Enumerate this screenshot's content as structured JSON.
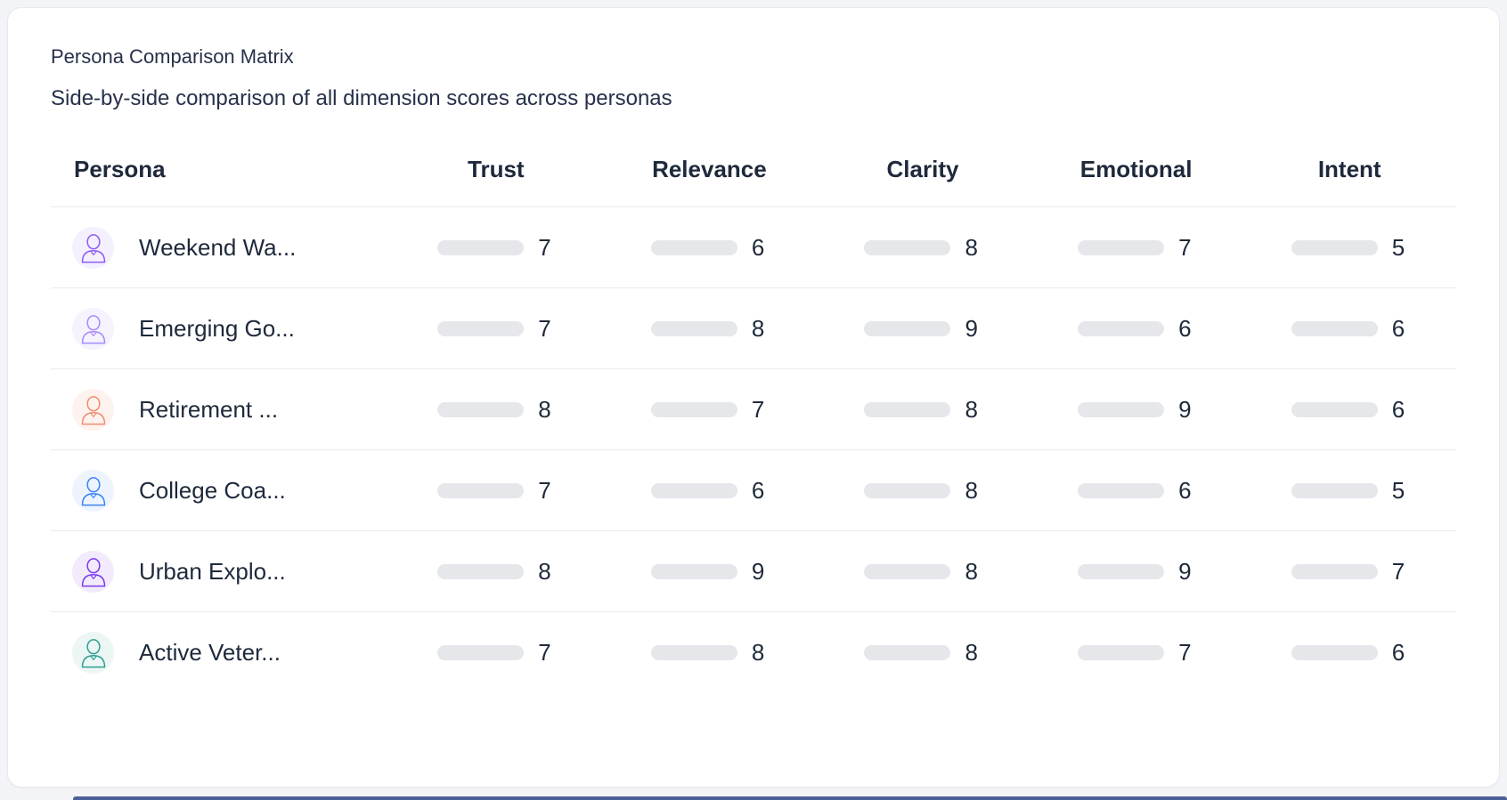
{
  "header": {
    "title": "Persona Comparison Matrix",
    "subtitle": "Side-by-side comparison of all dimension scores across personas"
  },
  "table": {
    "columns": [
      "Persona",
      "Trust",
      "Relevance",
      "Clarity",
      "Emotional",
      "Intent"
    ],
    "score_scale_max": 10,
    "score_colors": {
      "high": "#22c55e",
      "mid": "#eab308",
      "track": "#e5e7eb",
      "high_threshold": 8
    },
    "rows": [
      {
        "name": "Weekend Wa...",
        "avatar": "man-portrait-violet",
        "avatar_color": "#8b5cf6",
        "avatar_tint": "#f4f0fe",
        "scores": [
          7,
          6,
          8,
          7,
          5
        ]
      },
      {
        "name": "Emerging Go...",
        "avatar": "woman-portrait-lavender",
        "avatar_color": "#a78bfa",
        "avatar_tint": "#f6f2fe",
        "scores": [
          7,
          8,
          9,
          6,
          6
        ]
      },
      {
        "name": "Retirement ...",
        "avatar": "man-portrait-salmon",
        "avatar_color": "#ef8d6f",
        "avatar_tint": "#fef2ee",
        "scores": [
          8,
          7,
          8,
          9,
          6
        ]
      },
      {
        "name": "College Coa...",
        "avatar": "man-portrait-blue",
        "avatar_color": "#3b82f6",
        "avatar_tint": "#eef4fe",
        "scores": [
          7,
          6,
          8,
          6,
          5
        ]
      },
      {
        "name": "Urban Explo...",
        "avatar": "woman-portrait-purple",
        "avatar_color": "#7c3aed",
        "avatar_tint": "#f2ebfd",
        "scores": [
          8,
          9,
          8,
          9,
          7
        ]
      },
      {
        "name": "Active Veter...",
        "avatar": "man-portrait-teal",
        "avatar_color": "#2f9e8f",
        "avatar_tint": "#ecf7f5",
        "scores": [
          7,
          8,
          8,
          7,
          6
        ]
      }
    ]
  },
  "footer": {
    "accent_color": "#4c5f96"
  }
}
